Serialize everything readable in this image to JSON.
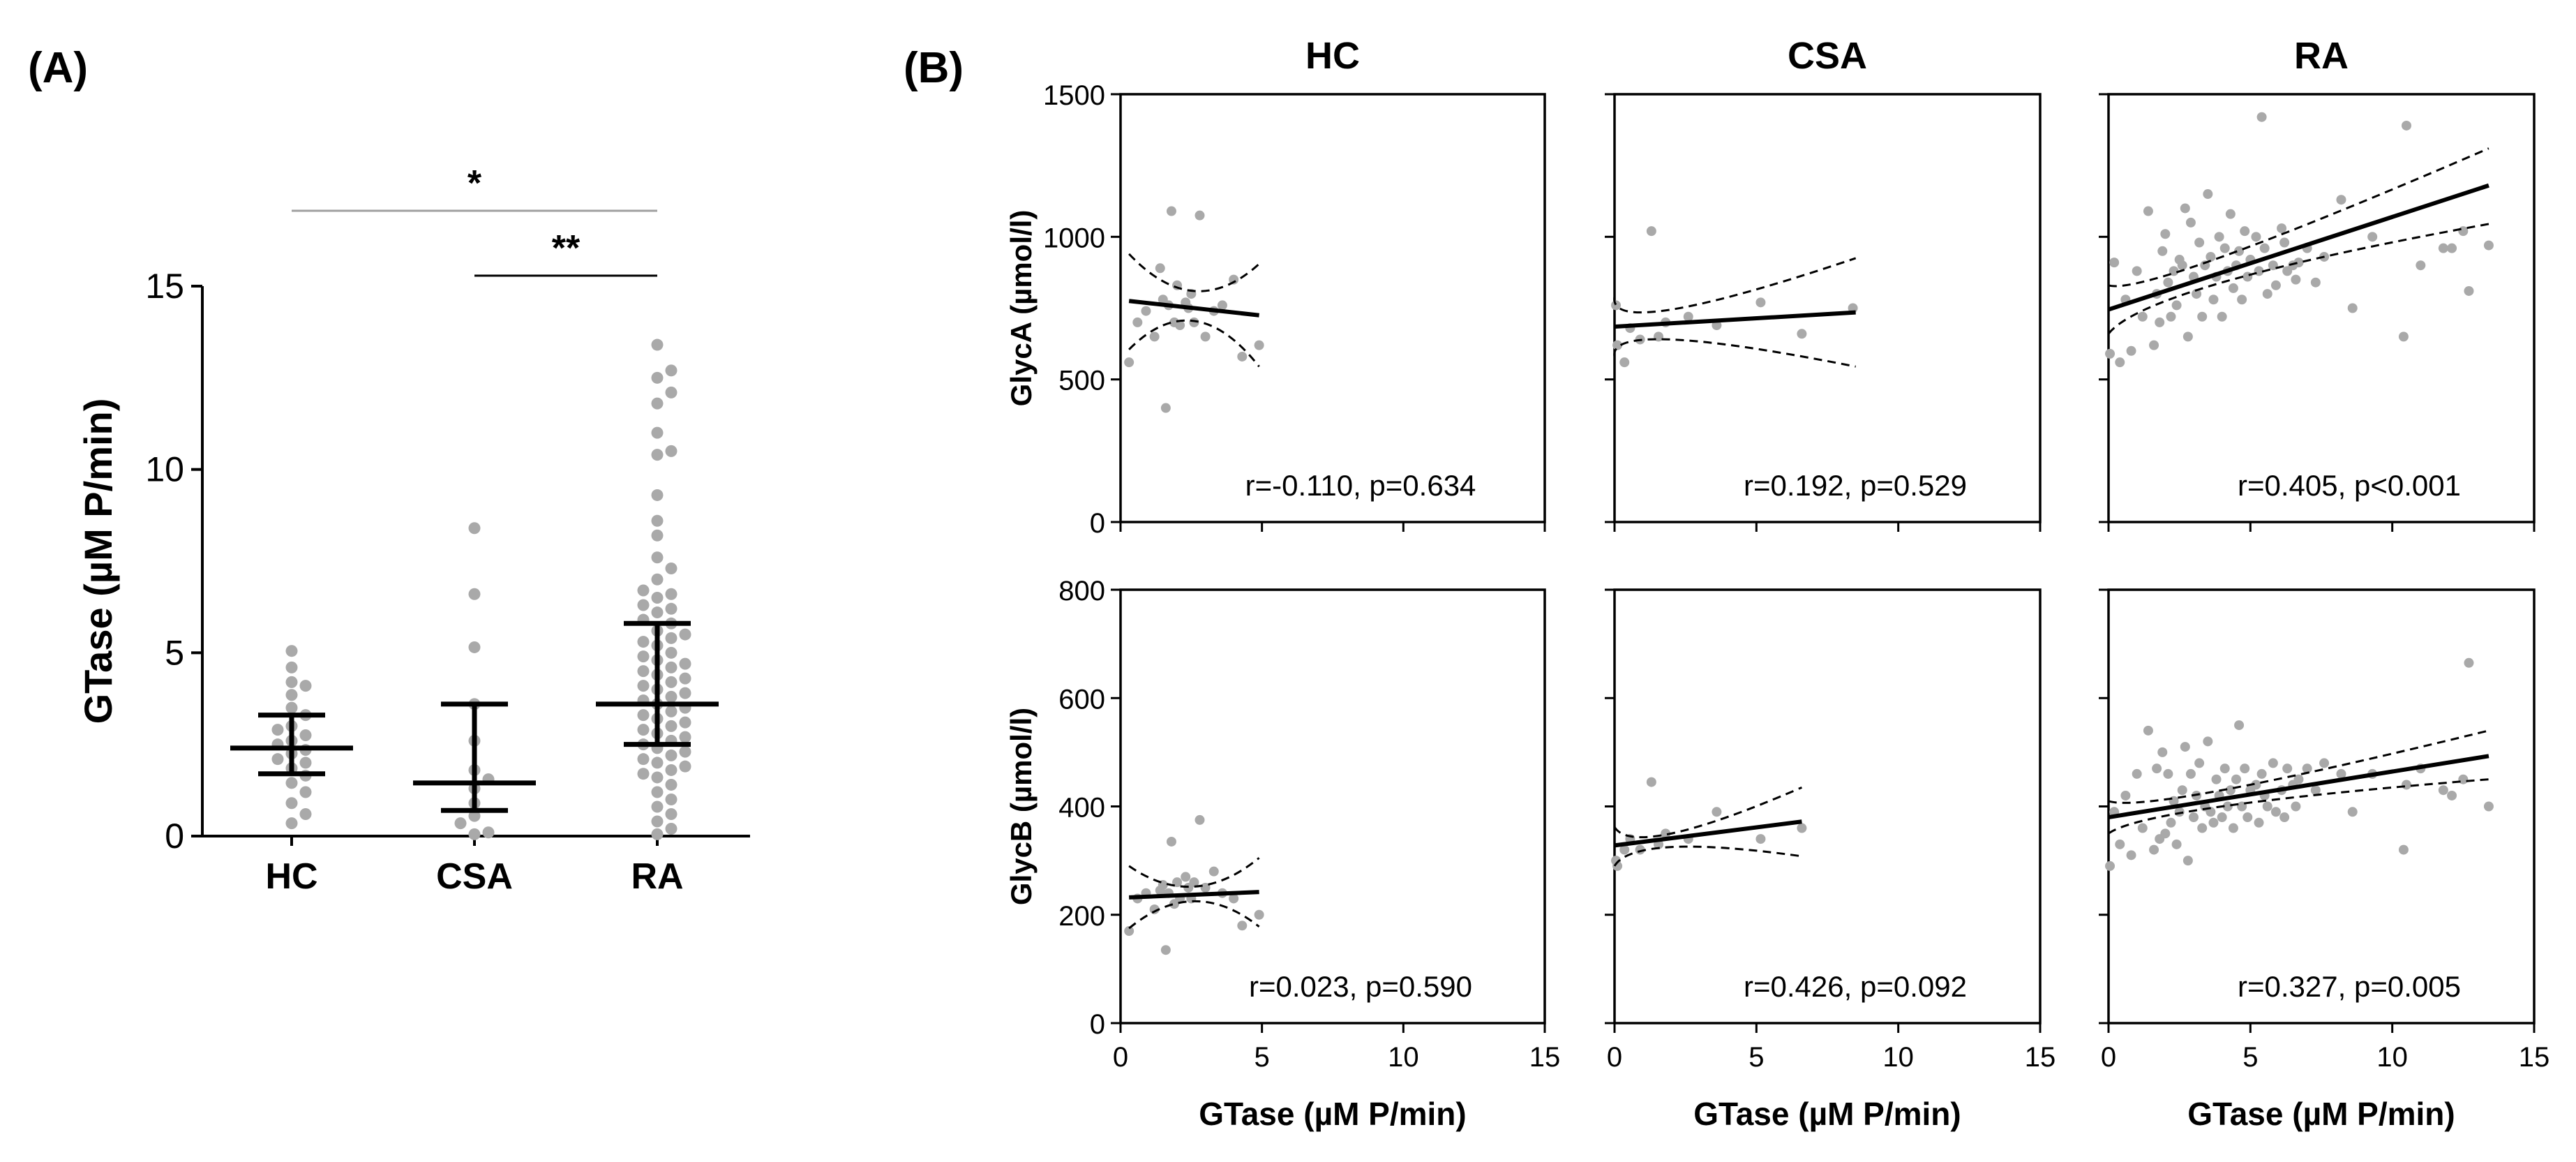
{
  "panel_labels": {
    "a": "(A)",
    "b": "(B)"
  },
  "colors": {
    "dot": "#a9a9a9",
    "line": "#000000",
    "sig": "#a0a0a0"
  },
  "chart_data": [
    {
      "id": "A",
      "type": "scatter",
      "subtype": "dot-plot with median and interquartile range",
      "categories": [
        "HC",
        "CSA",
        "RA"
      ],
      "ylabel": "GTase (µM P/min)",
      "ylim": [
        0,
        15
      ],
      "yticks": [
        "0",
        "5",
        "10",
        "15"
      ],
      "summary": [
        {
          "group": "HC",
          "median": 2.4,
          "q1": 1.7,
          "q3": 3.3
        },
        {
          "group": "CSA",
          "median": 1.45,
          "q1": 0.7,
          "q3": 3.6
        },
        {
          "group": "RA",
          "median": 3.6,
          "q1": 2.5,
          "q3": 5.8
        }
      ],
      "points": {
        "HC": [
          5.05,
          4.6,
          4.2,
          4.1,
          3.85,
          3.5,
          3.3,
          3.0,
          2.9,
          2.75,
          2.6,
          2.5,
          2.35,
          2.25,
          2.1,
          2.0,
          1.85,
          1.65,
          1.45,
          1.2,
          0.9,
          0.6,
          0.35
        ],
        "CSA": [
          8.4,
          6.6,
          5.15,
          3.6,
          2.6,
          1.8,
          1.55,
          1.3,
          0.9,
          0.55,
          0.35,
          0.1,
          0.05
        ],
        "RA": [
          13.4,
          12.7,
          12.5,
          12.1,
          11.8,
          11.0,
          10.5,
          10.4,
          9.3,
          8.6,
          8.2,
          7.6,
          7.3,
          7.0,
          6.7,
          6.6,
          6.5,
          6.3,
          6.2,
          6.1,
          5.9,
          5.8,
          5.6,
          5.5,
          5.4,
          5.3,
          5.2,
          5.0,
          4.9,
          4.8,
          4.7,
          4.6,
          4.5,
          4.4,
          4.3,
          4.2,
          4.1,
          4.0,
          3.9,
          3.8,
          3.7,
          3.6,
          3.5,
          3.4,
          3.3,
          3.2,
          3.1,
          3.0,
          2.9,
          2.8,
          2.7,
          2.6,
          2.5,
          2.4,
          2.3,
          2.2,
          2.1,
          2.0,
          1.9,
          1.8,
          1.7,
          1.6,
          1.4,
          1.2,
          1.0,
          0.8,
          0.6,
          0.4,
          0.2,
          0.05
        ]
      },
      "significance": [
        {
          "from": "HC",
          "to": "RA",
          "label": "*"
        },
        {
          "from": "CSA",
          "to": "RA",
          "label": "**"
        }
      ]
    },
    {
      "id": "B",
      "type": "scatter",
      "subtype": "correlation grid with linear fit and 95% confidence band",
      "columns": [
        "HC",
        "CSA",
        "RA"
      ],
      "xlabel": "GTase (µM P/min)",
      "xlim": [
        0,
        15
      ],
      "xticks": [
        "0",
        "5",
        "10",
        "15"
      ],
      "rows": [
        {
          "ylabel": "GlycA (µmol/l)",
          "ylim": [
            0,
            1500
          ],
          "yticks": [
            "0",
            "500",
            "1000",
            "1500"
          ]
        },
        {
          "ylabel": "GlycB (µmol/l)",
          "ylim": [
            0,
            800
          ],
          "yticks": [
            "0",
            "200",
            "400",
            "600",
            "800"
          ]
        }
      ],
      "panels": [
        {
          "row": 0,
          "col": 0,
          "group": "HC",
          "annotation": "r=-0.110, p=0.634",
          "fit": {
            "x": [
              0.3,
              4.9
            ],
            "y": [
              775,
              725
            ]
          },
          "ci_upper": {
            "x": [
              0.3,
              2.6,
              4.9
            ],
            "y": [
              940,
              810,
              905
            ]
          },
          "ci_lower": {
            "x": [
              0.3,
              2.6,
              4.9
            ],
            "y": [
              605,
              705,
              545
            ]
          },
          "points": {
            "x": [
              0.3,
              0.6,
              0.9,
              1.2,
              1.4,
              1.5,
              1.6,
              1.7,
              1.8,
              1.9,
              2.0,
              2.1,
              2.3,
              2.4,
              2.5,
              2.6,
              2.8,
              3.0,
              3.3,
              3.6,
              4.0,
              4.3,
              4.9
            ],
            "y": [
              560,
              700,
              740,
              650,
              890,
              780,
              400,
              760,
              1090,
              700,
              830,
              690,
              770,
              750,
              800,
              700,
              1075,
              650,
              740,
              760,
              850,
              580,
              620
            ]
          }
        },
        {
          "row": 0,
          "col": 1,
          "group": "CSA",
          "annotation": "r=0.192, p=0.529",
          "fit": {
            "x": [
              0.0,
              8.5
            ],
            "y": [
              685,
              735
            ]
          },
          "ci_upper": {
            "x": [
              0.0,
              2.0,
              8.5
            ],
            "y": [
              790,
              745,
              925
            ]
          },
          "ci_lower": {
            "x": [
              0.0,
              2.0,
              8.5
            ],
            "y": [
              580,
              640,
              545
            ]
          },
          "points": {
            "x": [
              0.05,
              0.1,
              0.35,
              0.55,
              0.9,
              1.3,
              1.55,
              1.8,
              2.6,
              3.6,
              5.15,
              6.6,
              8.4
            ],
            "y": [
              760,
              620,
              560,
              680,
              640,
              1020,
              650,
              700,
              720,
              690,
              770,
              660,
              750
            ]
          }
        },
        {
          "row": 0,
          "col": 2,
          "group": "RA",
          "annotation": "r=0.405, p<0.001",
          "fit": {
            "x": [
              0.0,
              13.4
            ],
            "y": [
              745,
              1180
            ]
          },
          "ci_upper": {
            "x": [
              0.0,
              4.0,
              13.4
            ],
            "y": [
              830,
              930,
              1310
            ]
          },
          "ci_lower": {
            "x": [
              0.0,
              4.0,
              13.4
            ],
            "y": [
              660,
              840,
              1045
            ]
          },
          "points": {
            "x": [
              0.05,
              0.2,
              0.4,
              0.6,
              0.8,
              1.0,
              1.2,
              1.4,
              1.6,
              1.7,
              1.8,
              1.9,
              2.0,
              2.1,
              2.2,
              2.3,
              2.4,
              2.5,
              2.6,
              2.7,
              2.8,
              2.9,
              3.0,
              3.1,
              3.2,
              3.3,
              3.4,
              3.5,
              3.6,
              3.7,
              3.8,
              3.9,
              4.0,
              4.1,
              4.2,
              4.3,
              4.4,
              4.5,
              4.6,
              4.7,
              4.8,
              4.9,
              5.0,
              5.2,
              5.3,
              5.4,
              5.5,
              5.6,
              5.8,
              5.9,
              6.1,
              6.2,
              6.3,
              6.5,
              6.6,
              6.7,
              7.0,
              7.3,
              7.6,
              8.2,
              8.6,
              9.3,
              10.4,
              10.5,
              11.0,
              11.8,
              12.1,
              12.5,
              12.7,
              13.4
            ],
            "y": [
              590,
              910,
              560,
              780,
              600,
              880,
              720,
              1090,
              620,
              800,
              700,
              950,
              1010,
              840,
              720,
              880,
              760,
              920,
              900,
              1100,
              650,
              1050,
              860,
              800,
              980,
              720,
              900,
              1150,
              930,
              780,
              860,
              1000,
              720,
              960,
              880,
              1080,
              820,
              900,
              950,
              780,
              1020,
              860,
              920,
              1000,
              880,
              1420,
              960,
              800,
              900,
              830,
              1030,
              980,
              880,
              900,
              850,
              910,
              960,
              840,
              930,
              1130,
              750,
              1000,
              650,
              1390,
              900,
              960,
              960,
              1020,
              810,
              970
            ]
          }
        },
        {
          "row": 1,
          "col": 0,
          "group": "HC",
          "annotation": "r=0.023, p=0.590",
          "fit": {
            "x": [
              0.3,
              4.9
            ],
            "y": [
              232,
              242
            ]
          },
          "ci_upper": {
            "x": [
              0.3,
              2.6,
              4.9
            ],
            "y": [
              290,
              252,
              305
            ]
          },
          "ci_lower": {
            "x": [
              0.3,
              2.6,
              4.9
            ],
            "y": [
              175,
              225,
              178
            ]
          },
          "points": {
            "x": [
              0.3,
              0.6,
              0.9,
              1.2,
              1.4,
              1.5,
              1.6,
              1.7,
              1.8,
              1.9,
              2.0,
              2.1,
              2.3,
              2.4,
              2.5,
              2.6,
              2.8,
              3.0,
              3.3,
              3.6,
              4.0,
              4.3,
              4.9
            ],
            "y": [
              170,
              230,
              240,
              210,
              245,
              255,
              135,
              240,
              335,
              220,
              260,
              230,
              270,
              250,
              230,
              260,
              375,
              250,
              280,
              240,
              230,
              180,
              200
            ]
          }
        },
        {
          "row": 1,
          "col": 1,
          "group": "CSA",
          "annotation": "r=0.426, p=0.092",
          "fit": {
            "x": [
              0.0,
              6.6
            ],
            "y": [
              328,
              372
            ]
          },
          "ci_upper": {
            "x": [
              0.0,
              2.0,
              6.6
            ],
            "y": [
              362,
              350,
              435
            ]
          },
          "ci_lower": {
            "x": [
              0.0,
              2.0,
              6.6
            ],
            "y": [
              290,
              325,
              308
            ]
          },
          "points": {
            "x": [
              0.05,
              0.1,
              0.35,
              0.55,
              0.9,
              1.3,
              1.55,
              1.8,
              2.6,
              3.6,
              5.15,
              6.6
            ],
            "y": [
              300,
              290,
              320,
              340,
              320,
              445,
              330,
              350,
              340,
              390,
              340,
              360
            ]
          }
        },
        {
          "row": 1,
          "col": 2,
          "group": "RA",
          "annotation": "r=0.327, p=0.005",
          "fit": {
            "x": [
              0.0,
              13.4
            ],
            "y": [
              380,
              493
            ]
          },
          "ci_upper": {
            "x": [
              0.0,
              4.0,
              13.4
            ],
            "y": [
              410,
              430,
              540
            ]
          },
          "ci_lower": {
            "x": [
              0.0,
              4.0,
              13.4
            ],
            "y": [
              350,
              400,
              450
            ]
          },
          "points": {
            "x": [
              0.05,
              0.2,
              0.4,
              0.6,
              0.8,
              1.0,
              1.2,
              1.4,
              1.6,
              1.7,
              1.8,
              1.9,
              2.0,
              2.1,
              2.2,
              2.3,
              2.4,
              2.5,
              2.6,
              2.7,
              2.8,
              2.9,
              3.0,
              3.1,
              3.2,
              3.3,
              3.4,
              3.5,
              3.6,
              3.7,
              3.8,
              3.9,
              4.0,
              4.1,
              4.2,
              4.3,
              4.4,
              4.5,
              4.6,
              4.7,
              4.8,
              4.9,
              5.0,
              5.2,
              5.3,
              5.4,
              5.5,
              5.6,
              5.8,
              5.9,
              6.1,
              6.2,
              6.3,
              6.5,
              6.6,
              6.7,
              7.0,
              7.3,
              7.6,
              8.2,
              8.6,
              9.3,
              10.4,
              10.5,
              11.0,
              11.8,
              12.1,
              12.5,
              12.7,
              13.4
            ],
            "y": [
              290,
              390,
              330,
              420,
              310,
              460,
              360,
              540,
              320,
              470,
              340,
              500,
              350,
              460,
              370,
              410,
              330,
              390,
              430,
              510,
              300,
              460,
              380,
              420,
              480,
              360,
              400,
              520,
              390,
              370,
              450,
              420,
              380,
              470,
              400,
              430,
              360,
              450,
              550,
              400,
              470,
              380,
              430,
              440,
              370,
              460,
              420,
              400,
              480,
              390,
              430,
              380,
              470,
              440,
              400,
              450,
              470,
              430,
              480,
              460,
              390,
              460,
              320,
              440,
              470,
              430,
              420,
              450,
              665,
              400
            ]
          }
        }
      ]
    }
  ]
}
